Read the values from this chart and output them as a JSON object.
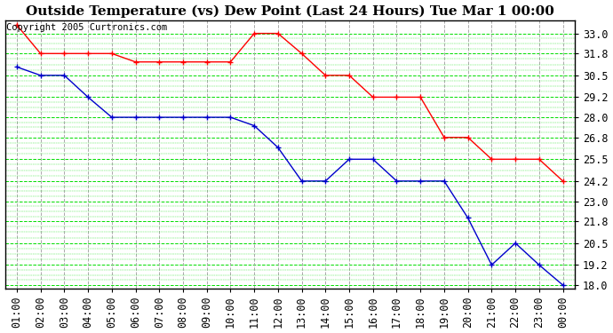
{
  "title": "Outside Temperature (vs) Dew Point (Last 24 Hours) Tue Mar 1 00:00",
  "copyright": "Copyright 2005 Curtronics.com",
  "x_labels": [
    "01:00",
    "02:00",
    "03:00",
    "04:00",
    "05:00",
    "06:00",
    "07:00",
    "08:00",
    "09:00",
    "10:00",
    "11:00",
    "12:00",
    "13:00",
    "14:00",
    "15:00",
    "16:00",
    "17:00",
    "18:00",
    "19:00",
    "20:00",
    "21:00",
    "22:00",
    "23:00",
    "00:00"
  ],
  "temp_data": [
    33.5,
    31.8,
    31.8,
    31.8,
    31.8,
    31.3,
    31.3,
    31.3,
    31.3,
    31.3,
    33.0,
    33.0,
    31.8,
    30.5,
    30.5,
    29.2,
    29.2,
    29.2,
    26.8,
    26.8,
    25.5,
    25.5,
    25.5,
    24.2
  ],
  "dew_data": [
    31.0,
    30.5,
    30.5,
    29.2,
    28.0,
    28.0,
    28.0,
    28.0,
    28.0,
    28.0,
    27.5,
    26.2,
    24.2,
    24.2,
    25.5,
    25.5,
    24.2,
    24.2,
    24.2,
    22.0,
    19.2,
    20.5,
    19.2,
    18.0
  ],
  "temp_color": "#ff0000",
  "dew_color": "#0000cc",
  "background_color": "#ffffff",
  "plot_bg_color": "#ffffff",
  "hgrid_color": "#00dd00",
  "vgrid_color": "#aaaaaa",
  "ylim": [
    17.8,
    33.8
  ],
  "yticks": [
    18.0,
    19.2,
    20.5,
    21.8,
    23.0,
    24.2,
    25.5,
    26.8,
    28.0,
    29.2,
    30.5,
    31.8,
    33.0
  ],
  "title_fontsize": 11,
  "copyright_fontsize": 7.5,
  "tick_fontsize": 8.5
}
